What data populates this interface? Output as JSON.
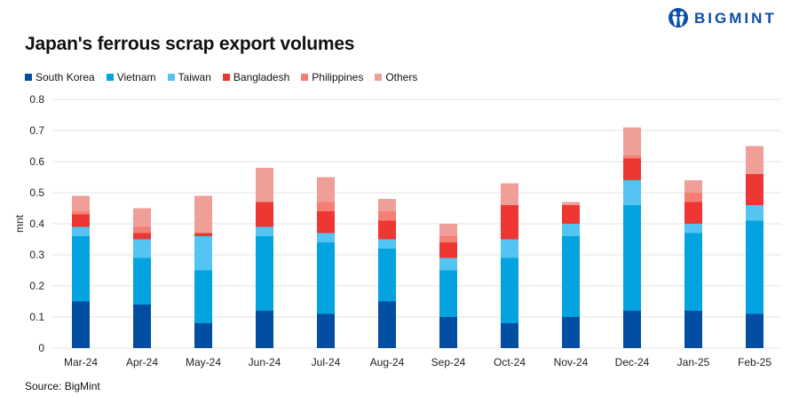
{
  "logo": {
    "text": "BIGMINT"
  },
  "chart_data": {
    "type": "bar",
    "stacked": true,
    "title": "Japan's ferrous scrap export volumes",
    "ylabel": "mnt",
    "xlabel": "",
    "ylim": [
      0,
      0.8
    ],
    "yticks": [
      "0",
      "0.1",
      "0.2",
      "0.3",
      "0.4",
      "0.5",
      "0.6",
      "0.7",
      "0.8"
    ],
    "grid": true,
    "legend_position": "top-left",
    "categories": [
      "Mar-24",
      "Apr-24",
      "May-24",
      "Jun-24",
      "Jul-24",
      "Aug-24",
      "Sep-24",
      "Oct-24",
      "Nov-24",
      "Dec-24",
      "Jan-25",
      "Feb-25"
    ],
    "series": [
      {
        "name": "South Korea",
        "color": "#024ea2",
        "values": [
          0.15,
          0.14,
          0.08,
          0.12,
          0.11,
          0.15,
          0.1,
          0.08,
          0.1,
          0.12,
          0.12,
          0.11
        ]
      },
      {
        "name": "Vietnam",
        "color": "#02a3e0",
        "values": [
          0.21,
          0.15,
          0.17,
          0.24,
          0.23,
          0.17,
          0.15,
          0.21,
          0.26,
          0.34,
          0.25,
          0.3
        ]
      },
      {
        "name": "Taiwan",
        "color": "#54c4f2",
        "values": [
          0.03,
          0.06,
          0.11,
          0.03,
          0.03,
          0.03,
          0.04,
          0.06,
          0.04,
          0.08,
          0.03,
          0.05
        ]
      },
      {
        "name": "Bangladesh",
        "color": "#ee3733",
        "values": [
          0.04,
          0.02,
          0.01,
          0.08,
          0.07,
          0.06,
          0.05,
          0.11,
          0.06,
          0.07,
          0.07,
          0.1
        ]
      },
      {
        "name": "Philippines",
        "color": "#f57f75",
        "values": [
          0.01,
          0.02,
          0,
          0,
          0.03,
          0.03,
          0.02,
          0,
          0,
          0.01,
          0.03,
          0
        ]
      },
      {
        "name": "Others",
        "color": "#f09f98",
        "values": [
          0.05,
          0.06,
          0.12,
          0.11,
          0.08,
          0.04,
          0.04,
          0.07,
          0.01,
          0.09,
          0.04,
          0.09
        ]
      }
    ],
    "source": "Source: BigMint"
  }
}
